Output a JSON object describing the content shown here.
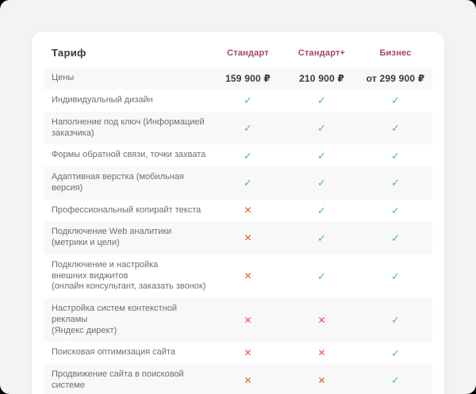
{
  "page": {
    "background": "#f1f3f5",
    "card_background": "#ffffff"
  },
  "table": {
    "title": "Тариф",
    "plans": [
      "Стандарт",
      "Стандарт+",
      "Бизнес"
    ],
    "price_row": {
      "label": "Цены",
      "values": [
        "159 900 ₽",
        "210 900 ₽",
        "от 299 900 ₽"
      ]
    },
    "features": [
      {
        "name": "Индивидуальный дизайн",
        "availability": [
          true,
          true,
          true
        ]
      },
      {
        "name": "Наполнение под ключ (Информацией\nзаказчика)",
        "availability": [
          true,
          true,
          true
        ]
      },
      {
        "name": "Формы обратной связи, точки захвата",
        "availability": [
          true,
          true,
          true
        ]
      },
      {
        "name": "Адаптивная верстка (мобильная версия)",
        "availability": [
          true,
          true,
          true
        ]
      },
      {
        "name": "Профессиональный копирайт текста",
        "availability": [
          false,
          true,
          true
        ]
      },
      {
        "name": "Подключение Web аналитики\n(метрики и цели)",
        "availability": [
          false,
          true,
          true
        ]
      },
      {
        "name": "Подключение и настройка\nвнешних виджитов\n(онлайн консультант, заказать звонок)",
        "availability": [
          false,
          true,
          true
        ]
      },
      {
        "name": "Настройка систем контекстной рекламы\n(Яндекс директ)",
        "availability": [
          false,
          false,
          true
        ]
      },
      {
        "name": "Поисковая оптимизация сайта",
        "availability": [
          false,
          false,
          true
        ]
      },
      {
        "name": "Продвижение сайта в поисковой системе",
        "availability": [
          false,
          false,
          true
        ]
      }
    ],
    "icons": {
      "available": "✓",
      "unavailable": "✕"
    },
    "colors": {
      "plan_header": "#a64663",
      "check": "#4db893",
      "cross": "#e7563a"
    }
  }
}
